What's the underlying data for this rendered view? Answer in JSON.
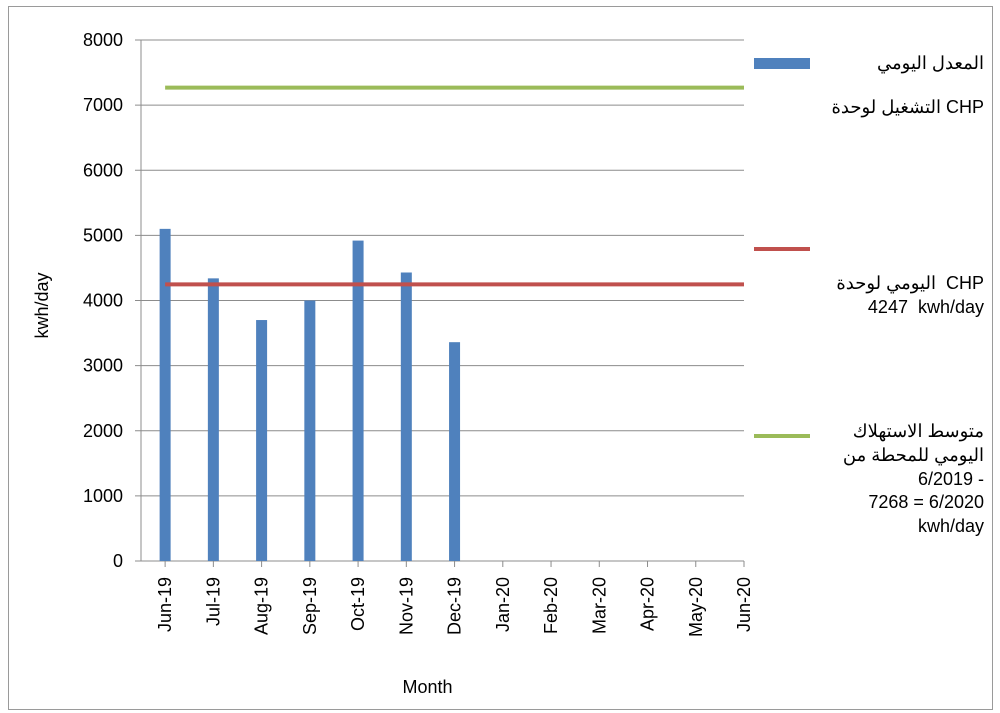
{
  "chart_data": {
    "type": "bar",
    "categories": [
      "Jun-19",
      "Jul-19",
      "Aug-19",
      "Sep-19",
      "Oct-19",
      "Nov-19",
      "Dec-19",
      "Jan-20",
      "Feb-20",
      "Mar-20",
      "Apr-20",
      "May-20",
      "Jun-20"
    ],
    "series": [
      {
        "name": "المعدل اليومي التشغيل لوحدة CHP",
        "kind": "bar",
        "color": "#4f81bd",
        "values": [
          5100,
          4340,
          3700,
          4000,
          4920,
          4430,
          3360,
          null,
          null,
          null,
          null,
          null,
          null
        ]
      },
      {
        "name": "اليومي لوحدة CHP 4247 kwh/day",
        "kind": "line",
        "color": "#c0504d",
        "values": [
          4247,
          4247,
          4247,
          4247,
          4247,
          4247,
          4247,
          4247,
          4247,
          4247,
          4247,
          4247,
          4247
        ]
      },
      {
        "name": "متوسط الاستهلاك اليومي للمحطة من 6/2019 - 6/2020 = 7268 kwh/day",
        "kind": "line",
        "color": "#9bbb59",
        "values": [
          7268,
          7268,
          7268,
          7268,
          7268,
          7268,
          7268,
          7268,
          7268,
          7268,
          7268,
          7268,
          7268
        ]
      }
    ],
    "xlabel": "Month",
    "ylabel": "kwh/day",
    "ylim": [
      0,
      8000
    ],
    "yticks": [
      0,
      1000,
      2000,
      3000,
      4000,
      5000,
      6000,
      7000,
      8000
    ],
    "grid": true,
    "legend_position": "right",
    "legend": [
      {
        "lines": [
          "المعدل اليومي",
          "التشغيل لوحدة CHP"
        ]
      },
      {
        "lines": [
          "اليومي لوحدة  CHP",
          "4247  kwh/day"
        ]
      },
      {
        "lines": [
          "متوسط الاستهلاك",
          "اليومي للمحطة من",
          "6/2019 -",
          "7268 = 6/2020",
          "kwh/day"
        ]
      }
    ]
  }
}
